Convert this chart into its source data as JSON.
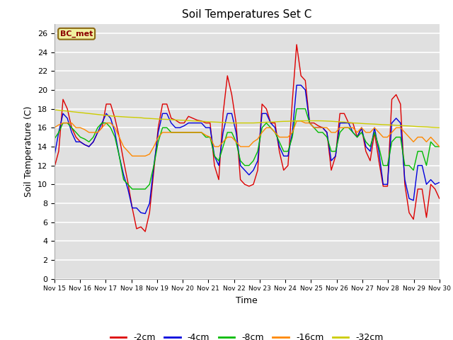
{
  "title": "Soil Temperatures Set C",
  "xlabel": "Time",
  "ylabel": "Soil Temperature (C)",
  "ylim": [
    0,
    27
  ],
  "yticks": [
    0,
    2,
    4,
    6,
    8,
    10,
    12,
    14,
    16,
    18,
    20,
    22,
    24,
    26
  ],
  "label_bc": "BC_met",
  "bg_color": "#e0e0e0",
  "line_colors": {
    "-2cm": "#dd0000",
    "-4cm": "#0000dd",
    "-8cm": "#00bb00",
    "-16cm": "#ff8800",
    "-32cm": "#cccc00"
  },
  "x_tick_labels": [
    "Nov 15",
    "Nov 16",
    "Nov 17",
    "Nov 18",
    "Nov 19",
    "Nov 20",
    "Nov 21",
    "Nov 22",
    "Nov 23",
    "Nov 24",
    "Nov 25",
    "Nov 26",
    "Nov 27",
    "Nov 28",
    "Nov 29",
    "Nov 30"
  ],
  "series": {
    "-2cm": [
      11.8,
      13.5,
      19.0,
      18.0,
      16.0,
      15.0,
      14.5,
      14.2,
      14.0,
      14.5,
      15.5,
      16.0,
      18.5,
      18.5,
      17.0,
      15.0,
      12.5,
      10.2,
      7.5,
      5.3,
      5.5,
      5.0,
      7.0,
      11.5,
      16.0,
      18.5,
      18.5,
      17.0,
      16.8,
      16.5,
      16.5,
      17.2,
      17.0,
      16.8,
      16.7,
      16.5,
      16.5,
      12.0,
      10.5,
      17.5,
      21.5,
      19.5,
      16.5,
      10.5,
      10.0,
      9.8,
      10.0,
      11.5,
      18.5,
      18.0,
      16.5,
      16.5,
      13.5,
      11.5,
      12.0,
      18.8,
      24.8,
      21.5,
      21.0,
      16.5,
      16.5,
      16.2,
      16.0,
      15.5,
      11.5,
      13.0,
      17.5,
      17.5,
      16.5,
      16.5,
      15.0,
      16.0,
      13.5,
      12.5,
      15.5,
      12.5,
      9.8,
      9.8,
      19.0,
      19.5,
      18.5,
      10.0,
      7.0,
      6.3,
      9.5,
      9.5,
      6.5,
      10.0,
      9.5,
      8.5
    ],
    "-4cm": [
      13.0,
      15.5,
      17.5,
      17.0,
      15.5,
      14.5,
      14.5,
      14.2,
      14.0,
      14.5,
      15.5,
      16.5,
      17.5,
      17.0,
      15.5,
      13.0,
      11.0,
      9.5,
      7.5,
      7.5,
      7.0,
      6.9,
      8.0,
      12.0,
      15.5,
      17.5,
      17.5,
      16.5,
      16.0,
      16.0,
      16.2,
      16.5,
      16.5,
      16.5,
      16.5,
      16.0,
      16.0,
      13.0,
      12.0,
      15.5,
      17.5,
      17.5,
      15.5,
      12.0,
      11.5,
      11.0,
      11.5,
      12.5,
      17.5,
      17.5,
      16.5,
      16.0,
      14.0,
      13.0,
      13.0,
      15.5,
      20.5,
      20.5,
      20.0,
      16.5,
      16.0,
      16.0,
      16.0,
      15.5,
      12.5,
      13.0,
      16.5,
      16.5,
      16.5,
      15.5,
      15.0,
      16.0,
      14.0,
      13.5,
      16.0,
      13.5,
      10.0,
      10.0,
      16.5,
      17.0,
      16.5,
      10.5,
      8.5,
      8.3,
      12.0,
      12.0,
      10.0,
      10.5,
      10.0,
      10.2
    ],
    "-8cm": [
      14.8,
      15.5,
      16.5,
      16.5,
      16.0,
      15.5,
      15.0,
      14.8,
      14.5,
      15.0,
      16.0,
      16.5,
      16.5,
      16.0,
      15.0,
      13.0,
      10.5,
      10.0,
      9.5,
      9.5,
      9.5,
      9.5,
      10.0,
      12.0,
      14.5,
      16.0,
      16.0,
      15.5,
      15.5,
      15.5,
      15.5,
      15.5,
      15.5,
      15.5,
      15.5,
      15.0,
      15.0,
      13.0,
      12.5,
      14.0,
      15.5,
      15.5,
      14.5,
      12.5,
      12.0,
      12.0,
      12.5,
      13.5,
      16.0,
      16.5,
      16.0,
      15.5,
      14.5,
      13.5,
      13.5,
      15.0,
      18.0,
      18.0,
      18.0,
      16.5,
      16.0,
      15.5,
      15.5,
      15.0,
      13.5,
      13.5,
      15.5,
      16.0,
      16.0,
      15.5,
      15.0,
      15.5,
      14.5,
      14.0,
      15.5,
      14.0,
      12.0,
      12.0,
      14.5,
      15.0,
      15.0,
      12.0,
      12.0,
      11.5,
      13.5,
      13.5,
      12.0,
      14.5,
      14.0,
      14.0
    ],
    "-16cm": [
      16.0,
      16.3,
      16.5,
      16.5,
      16.5,
      16.0,
      16.0,
      15.8,
      15.5,
      15.5,
      15.5,
      16.0,
      16.5,
      16.5,
      16.0,
      15.0,
      14.0,
      13.5,
      13.0,
      13.0,
      13.0,
      13.0,
      13.2,
      14.0,
      15.0,
      15.5,
      15.5,
      15.5,
      15.5,
      15.5,
      15.5,
      15.5,
      15.5,
      15.5,
      15.5,
      15.2,
      15.0,
      14.0,
      14.0,
      14.5,
      15.0,
      15.0,
      14.5,
      14.0,
      14.0,
      14.0,
      14.5,
      14.8,
      15.5,
      16.0,
      16.0,
      15.5,
      15.0,
      15.0,
      15.0,
      15.5,
      16.7,
      16.7,
      16.5,
      16.5,
      16.0,
      16.0,
      16.0,
      16.0,
      15.5,
      15.5,
      16.0,
      16.0,
      16.0,
      16.0,
      15.5,
      16.0,
      15.5,
      15.5,
      16.0,
      15.5,
      15.0,
      15.0,
      15.5,
      16.0,
      16.0,
      15.5,
      15.0,
      14.5,
      15.0,
      15.0,
      14.5,
      15.0,
      14.5,
      14.0
    ],
    "-32cm": [
      17.9,
      17.85,
      17.8,
      17.75,
      17.7,
      17.65,
      17.6,
      17.55,
      17.5,
      17.45,
      17.4,
      17.35,
      17.3,
      17.25,
      17.2,
      17.18,
      17.15,
      17.12,
      17.1,
      17.08,
      17.05,
      17.0,
      16.98,
      16.95,
      16.92,
      16.9,
      16.88,
      16.85,
      16.82,
      16.8,
      16.78,
      16.75,
      16.72,
      16.7,
      16.68,
      16.65,
      16.62,
      16.6,
      16.58,
      16.55,
      16.53,
      16.5,
      16.5,
      16.5,
      16.5,
      16.5,
      16.5,
      16.52,
      16.55,
      16.58,
      16.6,
      16.62,
      16.65,
      16.67,
      16.68,
      16.7,
      16.72,
      16.73,
      16.73,
      16.73,
      16.73,
      16.73,
      16.72,
      16.7,
      16.68,
      16.65,
      16.62,
      16.6,
      16.55,
      16.5,
      16.48,
      16.45,
      16.42,
      16.4,
      16.38,
      16.35,
      16.32,
      16.3,
      16.28,
      16.25,
      16.22,
      16.2,
      16.18,
      16.15,
      16.12,
      16.1,
      16.08,
      16.05,
      16.02,
      16.0
    ]
  }
}
